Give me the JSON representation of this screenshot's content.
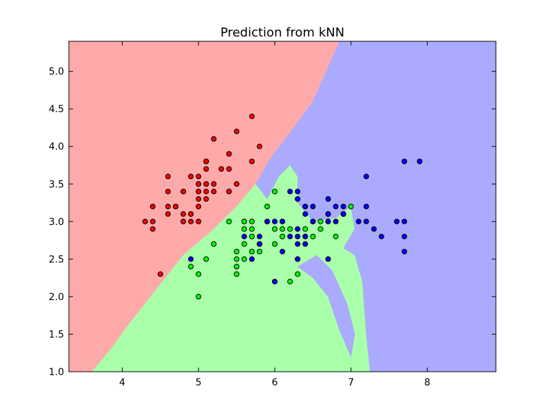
{
  "chart_data": {
    "type": "scatter",
    "title": "Prediction from kNN",
    "xlabel": "",
    "ylabel": "",
    "xlim": [
      3.3,
      8.9
    ],
    "ylim": [
      1.0,
      5.4
    ],
    "x_ticks": [
      4,
      5,
      6,
      7,
      8
    ],
    "y_ticks": [
      1.0,
      1.5,
      2.0,
      2.5,
      3.0,
      3.5,
      4.0,
      4.5,
      5.0
    ],
    "grid": false,
    "colors": {
      "region_red": "#FFAAAA",
      "region_green": "#AAFFAA",
      "region_blue": "#AAAAFF",
      "point_red": "#FF0000",
      "point_green": "#00FF00",
      "point_blue": "#0000FF"
    },
    "regions": [
      {
        "class": "red",
        "polygon": [
          [
            3.3,
            5.4
          ],
          [
            6.85,
            5.4
          ],
          [
            6.5,
            4.6
          ],
          [
            6.25,
            4.25
          ],
          [
            5.95,
            3.85
          ],
          [
            5.75,
            3.5
          ],
          [
            5.5,
            3.2
          ],
          [
            5.2,
            2.9
          ],
          [
            4.8,
            2.55
          ],
          [
            4.45,
            2.1
          ],
          [
            4.1,
            1.65
          ],
          [
            3.85,
            1.3
          ],
          [
            3.6,
            1.0
          ],
          [
            3.3,
            1.0
          ]
        ]
      },
      {
        "class": "green",
        "polygon": [
          [
            3.6,
            1.0
          ],
          [
            3.85,
            1.3
          ],
          [
            4.1,
            1.65
          ],
          [
            4.45,
            2.1
          ],
          [
            4.8,
            2.55
          ],
          [
            5.2,
            2.9
          ],
          [
            5.5,
            3.2
          ],
          [
            5.75,
            3.5
          ],
          [
            5.9,
            3.3
          ],
          [
            6.05,
            3.6
          ],
          [
            6.2,
            3.75
          ],
          [
            6.3,
            3.6
          ],
          [
            6.3,
            3.25
          ],
          [
            6.5,
            3.0
          ],
          [
            6.8,
            3.05
          ],
          [
            7.0,
            3.2
          ],
          [
            7.05,
            2.9
          ],
          [
            6.9,
            2.65
          ],
          [
            7.05,
            2.55
          ],
          [
            7.15,
            2.2
          ],
          [
            7.2,
            1.5
          ],
          [
            7.25,
            1.0
          ]
        ]
      },
      {
        "class": "blue",
        "polygon": [
          [
            6.85,
            5.4
          ],
          [
            8.9,
            5.4
          ],
          [
            8.9,
            1.0
          ],
          [
            7.25,
            1.0
          ],
          [
            7.2,
            1.5
          ],
          [
            7.15,
            2.2
          ],
          [
            7.05,
            2.55
          ],
          [
            6.9,
            2.65
          ],
          [
            7.05,
            2.9
          ],
          [
            7.0,
            3.2
          ],
          [
            6.8,
            3.05
          ],
          [
            6.5,
            3.0
          ],
          [
            6.3,
            3.25
          ],
          [
            6.3,
            3.6
          ],
          [
            6.2,
            3.75
          ],
          [
            6.05,
            3.6
          ],
          [
            5.9,
            3.3
          ],
          [
            5.75,
            3.5
          ],
          [
            5.95,
            3.85
          ],
          [
            6.25,
            4.25
          ],
          [
            6.5,
            4.6
          ]
        ]
      },
      {
        "class": "blue",
        "polygon": [
          [
            6.3,
            2.4
          ],
          [
            6.55,
            2.55
          ],
          [
            6.75,
            2.35
          ],
          [
            6.95,
            1.9
          ],
          [
            7.05,
            1.5
          ],
          [
            7.0,
            1.2
          ],
          [
            6.85,
            1.55
          ],
          [
            6.7,
            2.0
          ],
          [
            6.5,
            2.25
          ]
        ]
      }
    ],
    "series": [
      {
        "class": "red",
        "points": [
          [
            5.1,
            3.5
          ],
          [
            4.9,
            3.0
          ],
          [
            4.7,
            3.2
          ],
          [
            4.6,
            3.1
          ],
          [
            5.0,
            3.6
          ],
          [
            5.4,
            3.9
          ],
          [
            4.6,
            3.4
          ],
          [
            5.0,
            3.4
          ],
          [
            4.4,
            2.9
          ],
          [
            4.9,
            3.1
          ],
          [
            5.4,
            3.7
          ],
          [
            4.8,
            3.4
          ],
          [
            4.8,
            3.0
          ],
          [
            4.3,
            3.0
          ],
          [
            5.8,
            4.0
          ],
          [
            5.7,
            4.4
          ],
          [
            5.4,
            3.9
          ],
          [
            5.1,
            3.5
          ],
          [
            5.7,
            3.8
          ],
          [
            5.1,
            3.8
          ],
          [
            5.4,
            3.4
          ],
          [
            5.1,
            3.7
          ],
          [
            4.6,
            3.6
          ],
          [
            5.1,
            3.3
          ],
          [
            4.8,
            3.4
          ],
          [
            5.0,
            3.0
          ],
          [
            5.0,
            3.4
          ],
          [
            5.2,
            3.5
          ],
          [
            5.2,
            3.4
          ],
          [
            4.7,
            3.2
          ],
          [
            4.8,
            3.1
          ],
          [
            5.4,
            3.4
          ],
          [
            5.2,
            4.1
          ],
          [
            5.5,
            4.2
          ],
          [
            4.9,
            3.1
          ],
          [
            5.0,
            3.2
          ],
          [
            5.5,
            3.5
          ],
          [
            4.9,
            3.6
          ],
          [
            4.4,
            3.0
          ],
          [
            5.1,
            3.4
          ],
          [
            5.0,
            3.5
          ],
          [
            4.5,
            2.3
          ],
          [
            4.4,
            3.2
          ],
          [
            5.0,
            3.5
          ],
          [
            5.1,
            3.8
          ],
          [
            4.8,
            3.0
          ],
          [
            5.1,
            3.8
          ],
          [
            4.6,
            3.2
          ],
          [
            5.3,
            3.7
          ],
          [
            5.0,
            3.3
          ]
        ]
      },
      {
        "class": "green",
        "points": [
          [
            7.0,
            3.2
          ],
          [
            6.4,
            3.2
          ],
          [
            6.9,
            3.1
          ],
          [
            5.5,
            2.3
          ],
          [
            6.5,
            2.8
          ],
          [
            5.7,
            2.8
          ],
          [
            6.3,
            3.3
          ],
          [
            4.9,
            2.4
          ],
          [
            6.6,
            2.9
          ],
          [
            5.2,
            2.7
          ],
          [
            5.0,
            2.0
          ],
          [
            5.9,
            3.0
          ],
          [
            6.0,
            2.2
          ],
          [
            6.1,
            2.9
          ],
          [
            5.6,
            2.9
          ],
          [
            6.7,
            3.1
          ],
          [
            5.6,
            3.0
          ],
          [
            5.8,
            2.7
          ],
          [
            6.2,
            2.2
          ],
          [
            5.6,
            2.5
          ],
          [
            5.9,
            3.2
          ],
          [
            6.1,
            2.8
          ],
          [
            6.3,
            2.5
          ],
          [
            6.1,
            2.8
          ],
          [
            6.4,
            2.9
          ],
          [
            6.6,
            3.0
          ],
          [
            6.8,
            2.8
          ],
          [
            6.7,
            3.0
          ],
          [
            6.0,
            2.9
          ],
          [
            5.7,
            2.6
          ],
          [
            5.5,
            2.4
          ],
          [
            5.5,
            2.4
          ],
          [
            5.8,
            2.7
          ],
          [
            6.0,
            2.7
          ],
          [
            5.4,
            3.0
          ],
          [
            6.0,
            3.4
          ],
          [
            6.7,
            3.1
          ],
          [
            6.3,
            2.3
          ],
          [
            5.6,
            3.0
          ],
          [
            5.5,
            2.5
          ],
          [
            5.5,
            2.6
          ],
          [
            6.1,
            3.0
          ],
          [
            5.8,
            2.6
          ],
          [
            5.0,
            2.3
          ],
          [
            5.6,
            2.7
          ],
          [
            5.7,
            3.0
          ],
          [
            5.7,
            2.9
          ],
          [
            6.2,
            2.9
          ],
          [
            5.1,
            2.5
          ],
          [
            5.7,
            2.8
          ]
        ]
      },
      {
        "class": "blue",
        "points": [
          [
            6.3,
            3.3
          ],
          [
            5.8,
            2.7
          ],
          [
            7.1,
            3.0
          ],
          [
            6.3,
            2.9
          ],
          [
            6.5,
            3.0
          ],
          [
            7.6,
            3.0
          ],
          [
            4.9,
            2.5
          ],
          [
            7.3,
            2.9
          ],
          [
            6.7,
            2.5
          ],
          [
            7.2,
            3.6
          ],
          [
            6.5,
            3.2
          ],
          [
            6.4,
            2.7
          ],
          [
            6.8,
            3.0
          ],
          [
            5.7,
            2.5
          ],
          [
            5.8,
            2.8
          ],
          [
            6.4,
            3.2
          ],
          [
            6.5,
            3.0
          ],
          [
            7.7,
            3.8
          ],
          [
            7.7,
            2.6
          ],
          [
            6.0,
            2.2
          ],
          [
            6.9,
            3.2
          ],
          [
            5.6,
            2.8
          ],
          [
            7.7,
            2.8
          ],
          [
            6.3,
            2.7
          ],
          [
            6.7,
            3.3
          ],
          [
            7.2,
            3.2
          ],
          [
            6.2,
            2.8
          ],
          [
            6.1,
            3.0
          ],
          [
            6.4,
            2.8
          ],
          [
            7.2,
            3.0
          ],
          [
            7.4,
            2.8
          ],
          [
            7.9,
            3.8
          ],
          [
            6.4,
            2.8
          ],
          [
            6.3,
            2.8
          ],
          [
            6.1,
            2.6
          ],
          [
            7.7,
            3.0
          ],
          [
            6.3,
            3.4
          ],
          [
            6.4,
            3.1
          ],
          [
            6.0,
            3.0
          ],
          [
            6.9,
            3.1
          ],
          [
            6.7,
            3.1
          ],
          [
            6.9,
            3.1
          ],
          [
            5.8,
            2.7
          ],
          [
            6.8,
            3.2
          ],
          [
            6.7,
            3.3
          ],
          [
            6.7,
            3.0
          ],
          [
            6.3,
            2.5
          ],
          [
            6.5,
            3.0
          ],
          [
            6.2,
            3.4
          ],
          [
            5.9,
            3.0
          ]
        ]
      }
    ]
  }
}
